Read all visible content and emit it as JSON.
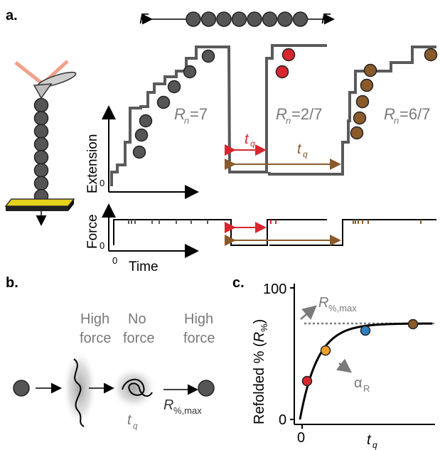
{
  "panel_a": {
    "label": "a.",
    "chain_force_left": "F",
    "chain_force_right": "F",
    "ext_axis": "Extension",
    "force_axis": "Force",
    "time_axis": "Time",
    "zero_ext": "0",
    "zero_force": "0",
    "zero_time": "0",
    "rn1": {
      "sym": "R",
      "sub": "n",
      "val": "=7"
    },
    "rn2": {
      "sym": "R",
      "sub": "n",
      "val": "=2/7"
    },
    "rn3": {
      "sym": "R",
      "sub": "n",
      "val": "=6/7"
    },
    "tq_red": {
      "sym": "t",
      "sub": "q"
    },
    "tq_brown": {
      "sym": "t",
      "sub": "q"
    }
  },
  "panel_b": {
    "label": "b.",
    "state1": [
      "High",
      "force"
    ],
    "state2": [
      "No",
      "force"
    ],
    "state3": [
      "High",
      "force"
    ],
    "tq": {
      "sym": "t",
      "sub": "q"
    },
    "rmax": {
      "sym": "R",
      "sub": "%,max"
    }
  },
  "panel_c": {
    "label": "c.",
    "ylabel_prefix": "Refolded % (",
    "ylabel_sym": "R",
    "ylabel_sub": "%",
    "ylabel_suffix": ")",
    "ytick_top": "100",
    "ytick_bottom": "0",
    "xtick_zero": "0",
    "xlabel": {
      "sym": "t",
      "sub": "q"
    },
    "rmax_label": {
      "sym": "R",
      "sub": "%,max"
    },
    "alpha_label": {
      "sym": "α",
      "sub": "R"
    }
  },
  "colors": {
    "gray_bead": "#555555",
    "red": "#d8262f",
    "orange": "#f4a024",
    "blue": "#2f7fc1",
    "brown": "#8a5a2b",
    "trace": "#5a5a5a"
  }
}
